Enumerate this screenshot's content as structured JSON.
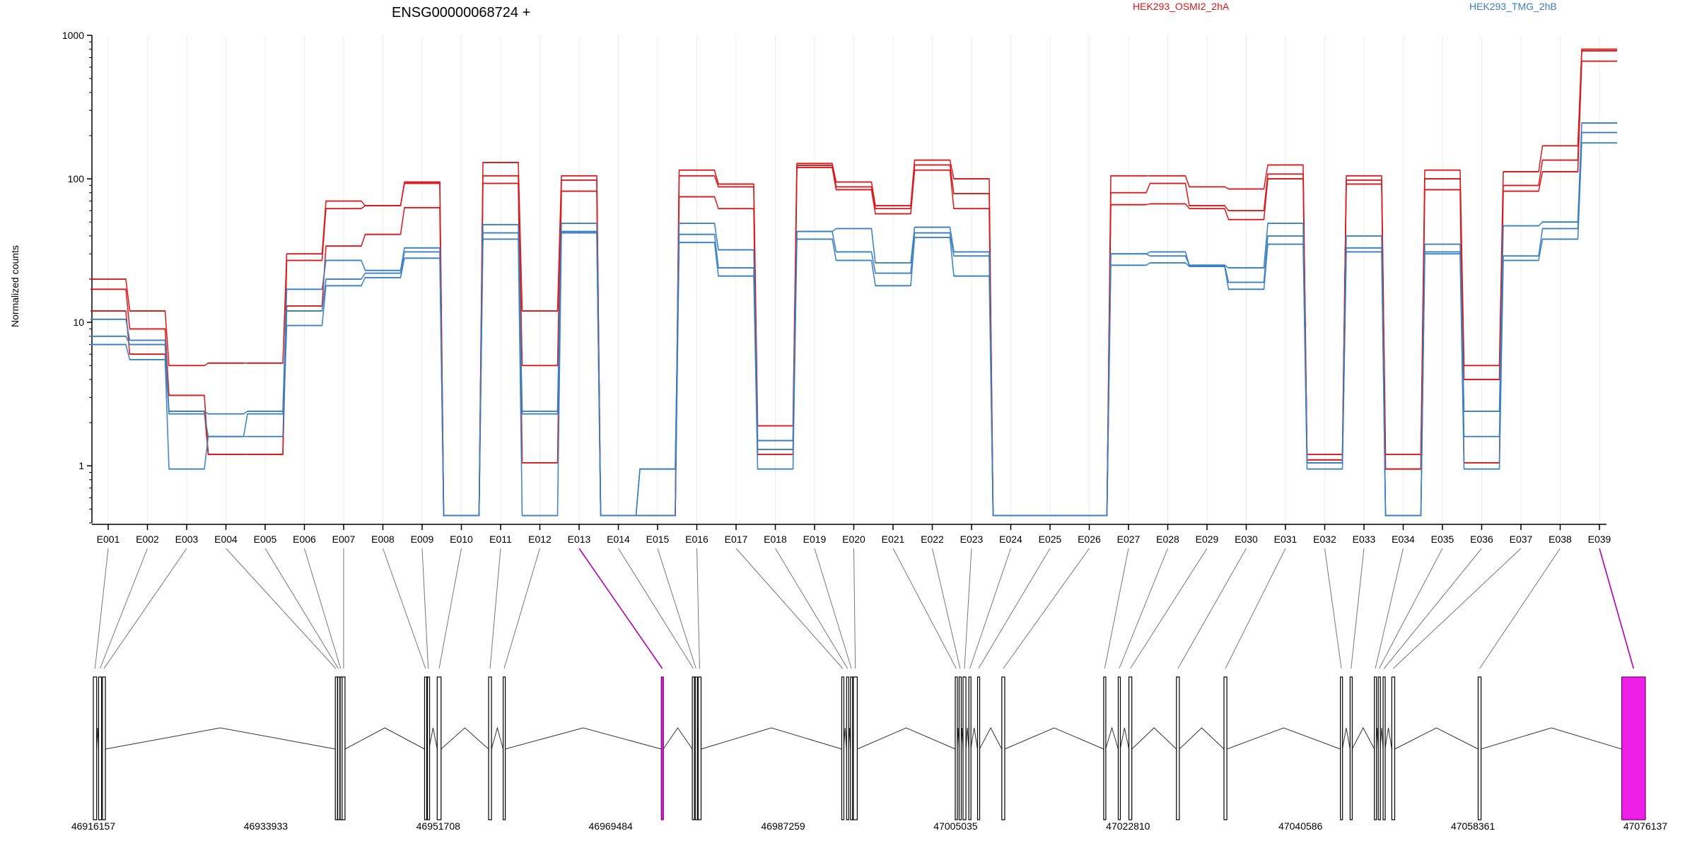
{
  "chart_data": {
    "type": "line",
    "title": "ENSG00000068724 +",
    "ylabel": "Normalized counts",
    "yscale": "log",
    "ylim": [
      0.4,
      1000
    ],
    "yticks": [
      1,
      10,
      100,
      1000
    ],
    "ytick_labels": [
      "1",
      "10",
      "100",
      "1000"
    ],
    "exons": [
      "E001",
      "E002",
      "E003",
      "E004",
      "E005",
      "E006",
      "E007",
      "E008",
      "E009",
      "E010",
      "E011",
      "E012",
      "E013",
      "E014",
      "E015",
      "E016",
      "E017",
      "E018",
      "E019",
      "E020",
      "E021",
      "E022",
      "E023",
      "E024",
      "E025",
      "E026",
      "E027",
      "E028",
      "E029",
      "E030",
      "E031",
      "E032",
      "E033",
      "E034",
      "E035",
      "E036",
      "E037",
      "E038",
      "E039"
    ],
    "highlight_exons": [
      "E013",
      "E039"
    ],
    "legend": [
      {
        "name": "HEK293_OSMI2_2hA",
        "color": "#d7191c"
      },
      {
        "name": "HEK293_TMG_2hB",
        "color": "#3a7fc1"
      }
    ],
    "series": [
      {
        "group": "HEK293_OSMI2_2hA",
        "color": "#d7191c",
        "values": [
          20,
          12,
          5,
          5.2,
          5.2,
          30,
          70,
          65,
          95,
          0.45,
          130,
          12,
          105,
          0.45,
          0.45,
          115,
          92,
          1.9,
          128,
          95,
          65,
          135,
          100,
          0.45,
          0.45,
          0.45,
          105,
          105,
          88,
          85,
          125,
          1.2,
          105,
          1.2,
          115,
          5,
          112,
          170,
          800
        ]
      },
      {
        "group": "HEK293_OSMI2_2hA",
        "color": "#d7191c",
        "values": [
          17,
          9,
          3.1,
          1.2,
          1.2,
          27,
          62,
          65,
          93,
          0.45,
          105,
          5,
          98,
          0.45,
          0.45,
          105,
          88,
          1.5,
          124,
          88,
          62,
          125,
          79,
          0.45,
          0.45,
          0.45,
          80,
          93,
          65,
          60,
          108,
          1.1,
          98,
          0.95,
          100,
          4,
          90,
          135,
          780
        ]
      },
      {
        "group": "HEK293_OSMI2_2hA",
        "color": "#d7191c",
        "values": [
          12,
          6,
          2.4,
          1.2,
          1.2,
          13,
          34,
          41,
          63,
          0.45,
          93,
          1.05,
          82,
          0.45,
          0.45,
          75,
          62,
          1.2,
          120,
          84,
          57,
          115,
          62,
          0.45,
          0.45,
          0.45,
          66,
          67,
          62,
          52,
          100,
          1.1,
          92,
          0.95,
          84,
          1.05,
          82,
          112,
          660
        ]
      },
      {
        "group": "HEK293_TMG_2hB",
        "color": "#3a7fc1",
        "values": [
          10.5,
          7.5,
          2.4,
          2.3,
          2.4,
          17,
          27,
          23,
          33,
          0.45,
          48,
          2.4,
          49,
          0.45,
          0.95,
          49,
          32,
          1.5,
          43,
          45,
          26,
          46,
          31,
          0.45,
          0.45,
          0.45,
          30,
          31,
          25,
          24,
          49,
          1.05,
          40,
          0.45,
          35,
          2.4,
          47,
          50,
          245
        ]
      },
      {
        "group": "HEK293_TMG_2hB",
        "color": "#3a7fc1",
        "values": [
          8,
          7,
          2.3,
          1.6,
          2.3,
          12,
          20,
          22,
          31,
          0.45,
          42,
          2.3,
          43,
          0.45,
          0.95,
          41,
          24,
          1.3,
          43,
          31,
          22,
          42,
          29,
          0.45,
          0.45,
          0.45,
          30,
          29,
          25,
          19,
          40,
          1.05,
          33,
          0.45,
          31,
          1.6,
          29,
          45,
          210
        ]
      },
      {
        "group": "HEK293_TMG_2hB",
        "color": "#3a7fc1",
        "values": [
          7,
          5.5,
          0.95,
          1.6,
          1.6,
          9.5,
          18,
          20.5,
          28,
          0.45,
          38,
          0.45,
          42,
          0.45,
          0.45,
          36,
          21,
          0.95,
          38,
          27,
          18,
          39,
          21,
          0.45,
          0.45,
          0.45,
          25,
          26,
          24.5,
          17,
          35,
          0.95,
          31,
          0.45,
          30,
          0.95,
          27,
          38,
          178
        ]
      }
    ],
    "genomic_axis": {
      "start": 46916157,
      "end": 47076137,
      "tick_labels": [
        "46916157",
        "46933933",
        "46951708",
        "46969484",
        "46987259",
        "47005035",
        "47022810",
        "47040586",
        "47058361",
        "47076137"
      ],
      "tick_values": [
        46916157,
        46933933,
        46951708,
        46969484,
        46987259,
        47005035,
        47022810,
        47040586,
        47058361,
        47076137
      ]
    },
    "exon_positions": [
      {
        "start": 46916157,
        "end": 46916500
      },
      {
        "start": 46916700,
        "end": 46917000
      },
      {
        "start": 46917100,
        "end": 46917400
      },
      {
        "start": 46941100,
        "end": 46941200
      },
      {
        "start": 46941350,
        "end": 46941450
      },
      {
        "start": 46941600,
        "end": 46941700
      },
      {
        "start": 46941800,
        "end": 46942100
      },
      {
        "start": 46950300,
        "end": 46950500
      },
      {
        "start": 46950600,
        "end": 46950750
      },
      {
        "start": 46951600,
        "end": 46952000
      },
      {
        "start": 46956900,
        "end": 46957200
      },
      {
        "start": 46958400,
        "end": 46958600
      },
      {
        "start": 46974700,
        "end": 46974900
      },
      {
        "start": 46977900,
        "end": 46978100
      },
      {
        "start": 46978200,
        "end": 46978350
      },
      {
        "start": 46978500,
        "end": 46978800
      },
      {
        "start": 46993300,
        "end": 46993500
      },
      {
        "start": 46993800,
        "end": 46994000
      },
      {
        "start": 46994200,
        "end": 46994400
      },
      {
        "start": 46994500,
        "end": 46994900
      },
      {
        "start": 47005000,
        "end": 47005200
      },
      {
        "start": 47005400,
        "end": 47005600
      },
      {
        "start": 47005800,
        "end": 47006100
      },
      {
        "start": 47006400,
        "end": 47006600
      },
      {
        "start": 47007300,
        "end": 47007500
      },
      {
        "start": 47009800,
        "end": 47010100
      },
      {
        "start": 47020300,
        "end": 47020500
      },
      {
        "start": 47021800,
        "end": 47022000
      },
      {
        "start": 47022900,
        "end": 47023200
      },
      {
        "start": 47027800,
        "end": 47028100
      },
      {
        "start": 47032700,
        "end": 47033000
      },
      {
        "start": 47044700,
        "end": 47044900
      },
      {
        "start": 47045700,
        "end": 47045900
      },
      {
        "start": 47048200,
        "end": 47048400
      },
      {
        "start": 47048600,
        "end": 47048800
      },
      {
        "start": 47049100,
        "end": 47049300
      },
      {
        "start": 47050000,
        "end": 47050300
      },
      {
        "start": 47058900,
        "end": 47059200
      },
      {
        "start": 47073700,
        "end": 47076137
      }
    ]
  }
}
